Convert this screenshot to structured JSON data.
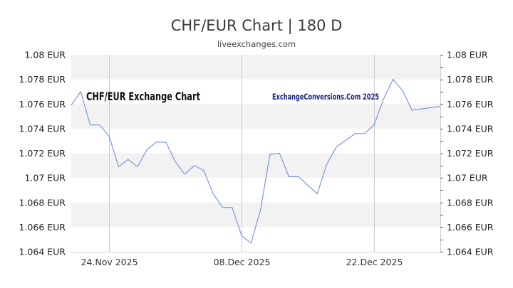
{
  "header": {
    "title": "CHF/EUR Chart | 180 D",
    "subtitle": "liveexchanges.com"
  },
  "watermarks": {
    "left": "CHF/EUR Exchange Chart",
    "right": "ExchangeConversions.Com 2025"
  },
  "colors": {
    "line": "#6f8fd6",
    "band": "#f2f2f2",
    "grid_vertical": "#cccccc",
    "axis": "#cccccc"
  },
  "chart_data": {
    "type": "line",
    "title": "CHF/EUR Chart | 180 D",
    "subtitle": "liveexchanges.com",
    "xlabel": "",
    "ylabel": "",
    "ylim": [
      1.064,
      1.08
    ],
    "yticks": [
      "1.08 EUR",
      "1.078 EUR",
      "1.076 EUR",
      "1.074 EUR",
      "1.072 EUR",
      "1.07 EUR",
      "1.068 EUR",
      "1.066 EUR",
      "1.064 EUR"
    ],
    "ytick_values": [
      1.08,
      1.078,
      1.076,
      1.074,
      1.072,
      1.07,
      1.068,
      1.066,
      1.064
    ],
    "xticks": [
      {
        "label": "24.Nov 2025",
        "index": 4
      },
      {
        "label": "08.Dec 2025",
        "index": 18
      },
      {
        "label": "22.Dec 2025",
        "index": 32
      }
    ],
    "grid": "horizontal alternating bands, vertical lines at x ticks",
    "legend": "none",
    "series": [
      {
        "name": "CHF/EUR",
        "x_index": [
          0,
          1,
          2,
          3,
          4,
          5,
          6,
          7,
          8,
          9,
          10,
          11,
          12,
          13,
          14,
          15,
          16,
          17,
          18,
          19,
          20,
          21,
          22,
          23,
          24,
          26,
          27,
          28,
          30,
          31,
          32,
          33,
          34,
          35,
          36,
          39
        ],
        "values": [
          1.0759,
          1.077,
          1.0743,
          1.0743,
          1.0734,
          1.0709,
          1.0715,
          1.0709,
          1.0723,
          1.0729,
          1.0729,
          1.0713,
          1.0703,
          1.071,
          1.0706,
          1.0687,
          1.0676,
          1.0676,
          1.0653,
          1.0647,
          1.0674,
          1.0719,
          1.072,
          1.0701,
          1.0701,
          1.0687,
          1.0711,
          1.0725,
          1.0736,
          1.0736,
          1.0743,
          1.0764,
          1.078,
          1.0771,
          1.0755,
          1.0758
        ]
      }
    ]
  }
}
